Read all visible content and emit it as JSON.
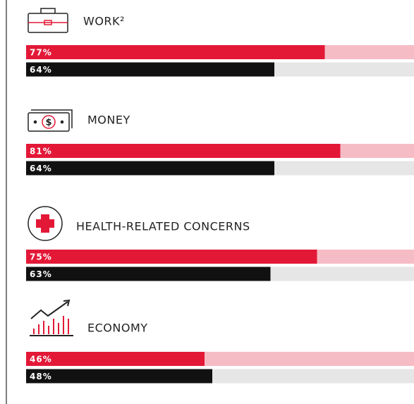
{
  "chart_data": {
    "type": "bar",
    "categories": [
      "WORK²",
      "MONEY",
      "HEALTH-RELATED CONCERNS",
      "ECONOMY"
    ],
    "series": [
      {
        "color": "#e31837",
        "values": [
          77,
          81,
          75,
          46
        ],
        "value_labels": [
          "77%",
          "81%",
          "75%",
          "46%"
        ]
      },
      {
        "color": "#111111",
        "values": [
          64,
          64,
          63,
          48
        ],
        "value_labels": [
          "64%",
          "64%",
          "63%",
          "48%"
        ]
      }
    ],
    "xlim": [
      0,
      100
    ]
  }
}
